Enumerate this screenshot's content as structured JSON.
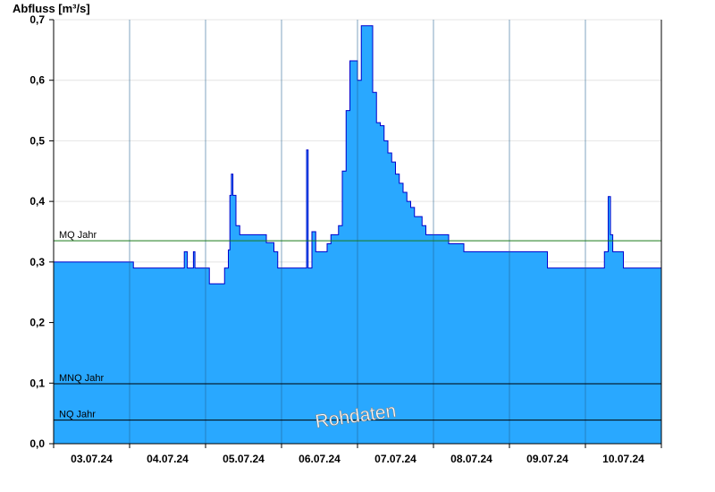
{
  "chart_data": {
    "type": "area",
    "ylabel": "Abfluss [m³/s]",
    "xlabel": "",
    "ylim": [
      0,
      0.7
    ],
    "yticks": [
      "0,0",
      "0,1",
      "0,2",
      "0,3",
      "0,4",
      "0,5",
      "0,6",
      "0,7"
    ],
    "ytick_values": [
      0,
      0.1,
      0.2,
      0.3,
      0.4,
      0.5,
      0.6,
      0.7
    ],
    "xlim": [
      0,
      8
    ],
    "xtick_labels": [
      "03.07.24",
      "04.07.24",
      "05.07.24",
      "06.07.24",
      "07.07.24",
      "08.07.24",
      "09.07.24",
      "10.07.24"
    ],
    "grid": true,
    "fill_color": "#29a8ff",
    "line_color": "#0000cc",
    "watermark": "Rohdaten",
    "reference_lines": [
      {
        "label": "MQ Jahr",
        "value": 0.335,
        "color": "#1a7a1a"
      },
      {
        "label": "MNQ Jahr",
        "value": 0.099,
        "color": "#000000"
      },
      {
        "label": "NQ Jahr",
        "value": 0.039,
        "color": "#000000"
      }
    ],
    "series": [
      {
        "x": [
          0,
          1.0,
          1.05,
          1.7,
          1.72,
          1.76,
          1.78,
          1.84,
          1.86,
          2.0,
          2.05,
          2.22,
          2.25,
          2.3,
          2.32,
          2.34,
          2.36,
          2.4,
          2.45,
          2.75,
          2.8,
          2.9,
          2.95,
          3.3,
          3.33,
          3.35,
          3.4,
          3.45,
          3.5,
          3.55,
          3.6,
          3.65,
          3.7,
          3.75,
          3.8,
          3.85,
          3.9,
          3.95,
          4.0,
          4.05,
          4.2,
          4.25,
          4.3,
          4.35,
          4.4,
          4.45,
          4.5,
          4.55,
          4.6,
          4.65,
          4.7,
          4.75,
          4.8,
          4.85,
          4.9,
          5.0,
          5.1,
          5.2,
          5.3,
          5.4,
          5.5,
          5.6,
          5.7,
          5.8,
          5.9,
          6.0,
          6.2,
          6.5,
          7.0,
          7.25,
          7.3,
          7.33,
          7.36,
          7.4,
          7.5,
          7.6,
          8.0
        ],
        "y": [
          0.3,
          0.3,
          0.29,
          0.29,
          0.317,
          0.29,
          0.29,
          0.317,
          0.29,
          0.29,
          0.264,
          0.264,
          0.29,
          0.32,
          0.41,
          0.445,
          0.41,
          0.36,
          0.345,
          0.345,
          0.332,
          0.317,
          0.29,
          0.29,
          0.485,
          0.29,
          0.35,
          0.317,
          0.317,
          0.317,
          0.33,
          0.345,
          0.345,
          0.36,
          0.45,
          0.55,
          0.632,
          0.632,
          0.6,
          0.69,
          0.58,
          0.53,
          0.525,
          0.5,
          0.48,
          0.465,
          0.445,
          0.43,
          0.415,
          0.4,
          0.39,
          0.375,
          0.375,
          0.36,
          0.345,
          0.345,
          0.345,
          0.33,
          0.33,
          0.317,
          0.317,
          0.317,
          0.317,
          0.317,
          0.317,
          0.317,
          0.317,
          0.29,
          0.29,
          0.317,
          0.408,
          0.345,
          0.317,
          0.317,
          0.29,
          0.29,
          0.29
        ]
      }
    ]
  }
}
